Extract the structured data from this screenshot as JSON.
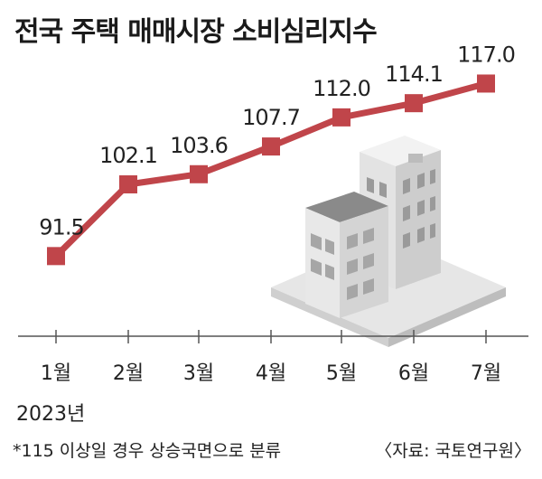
{
  "header": {
    "title": "전국 주택 매매시장 소비심리지수"
  },
  "footer": {
    "note": "*115 이상일 경우 상승국면으로 분류",
    "source": "〈자료: 국토연구원〉",
    "year": "2023년"
  },
  "colors": {
    "series": "#c0454a",
    "axis": "#555555",
    "text": "#222222"
  },
  "chart_data": {
    "type": "line",
    "title": "전국 주택 매매시장 소비심리지수",
    "categories": [
      "1월",
      "2월",
      "3월",
      "4월",
      "5월",
      "6월",
      "7월"
    ],
    "series": [
      {
        "values": [
          91.5,
          102.1,
          103.6,
          107.7,
          112.0,
          114.1,
          117.0
        ]
      }
    ],
    "data_labels": [
      "91.5",
      "102.1",
      "103.6",
      "107.7",
      "112.0",
      "114.1",
      "117.0"
    ],
    "xlabel": "",
    "ylabel": "",
    "ylim": [
      85,
      120
    ],
    "grid": false,
    "legend": "none"
  }
}
